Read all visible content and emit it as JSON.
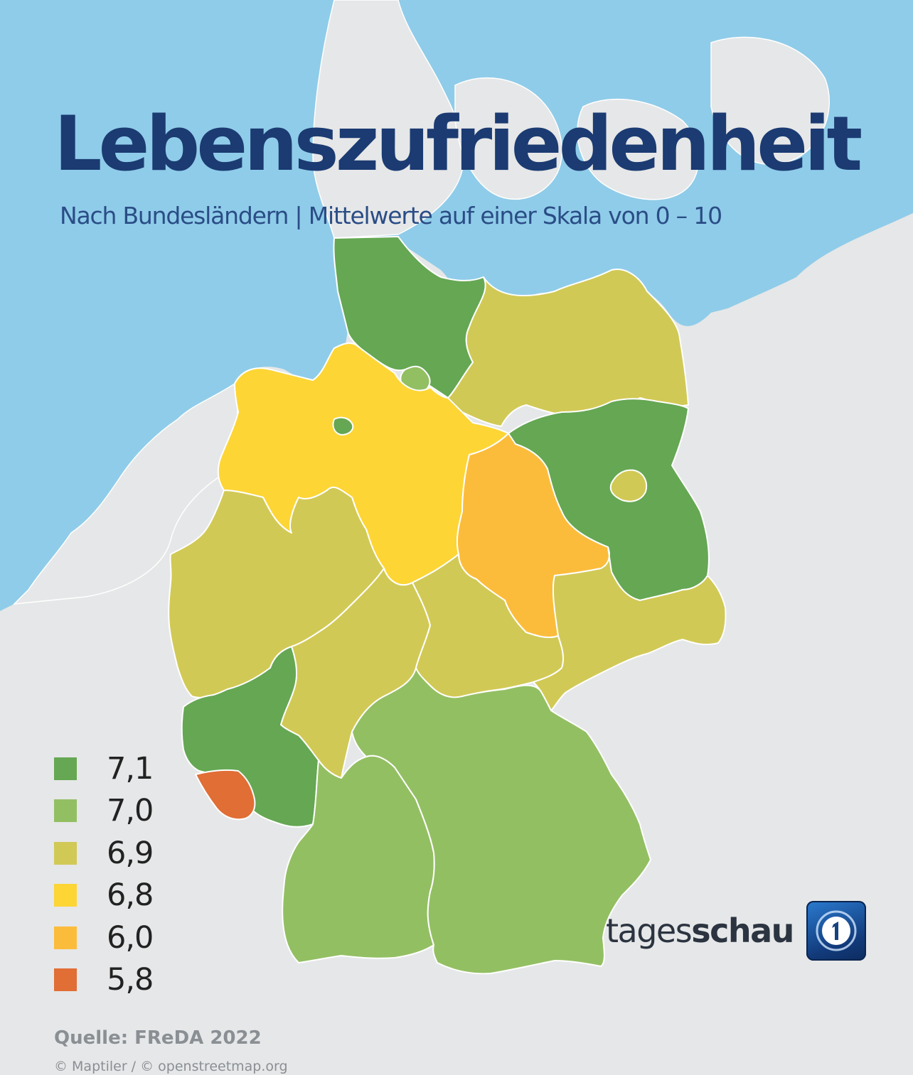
{
  "header": {
    "title": "Lebenszufriedenheit",
    "subtitle": "Nach Bundesländern | Mittelwerte auf einer Skala von 0 – 10"
  },
  "legend": {
    "items": [
      {
        "label": "7,1",
        "color": "#65a753"
      },
      {
        "label": "7,0",
        "color": "#93bf63"
      },
      {
        "label": "6,9",
        "color": "#d1c955"
      },
      {
        "label": "6,8",
        "color": "#fdd535"
      },
      {
        "label": "6,0",
        "color": "#fcbc3b"
      },
      {
        "label": "5,8",
        "color": "#e06e35"
      }
    ]
  },
  "regions": [
    {
      "name": "schleswig-holstein",
      "value": 7.1
    },
    {
      "name": "hamburg",
      "value": 7.0
    },
    {
      "name": "mecklenburg-vorpommern",
      "value": 6.9
    },
    {
      "name": "niedersachsen",
      "value": 6.8
    },
    {
      "name": "bremen",
      "value": 7.1
    },
    {
      "name": "brandenburg",
      "value": 7.1
    },
    {
      "name": "berlin",
      "value": 6.9
    },
    {
      "name": "sachsen-anhalt",
      "value": 6.0
    },
    {
      "name": "nordrhein-westfalen",
      "value": 6.9
    },
    {
      "name": "hessen",
      "value": 6.9
    },
    {
      "name": "thueringen",
      "value": 6.9
    },
    {
      "name": "sachsen",
      "value": 6.9
    },
    {
      "name": "rheinland-pfalz",
      "value": 7.1
    },
    {
      "name": "saarland",
      "value": 5.8
    },
    {
      "name": "baden-wuerttemberg",
      "value": 7.0
    },
    {
      "name": "bayern",
      "value": 7.0
    }
  ],
  "colors": {
    "sea": "#8fcce9",
    "land": "#e6e7e8",
    "title": "#1b3b72",
    "subtitle": "#2a4d86"
  },
  "brand": {
    "name_regular": "tages",
    "name_bold": "schau",
    "icon": "tagesschau-logo-icon"
  },
  "footer": {
    "source": "Quelle: FReDA 2022",
    "credit": "© Maptiler / © openstreetmap.org"
  }
}
